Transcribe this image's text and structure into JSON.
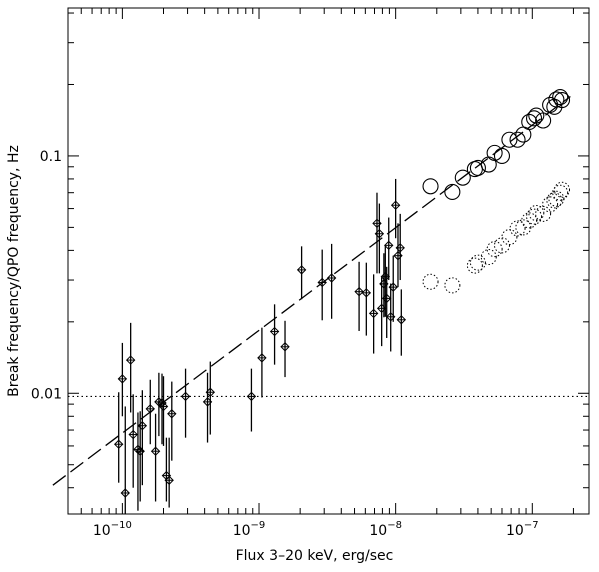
{
  "chart_data": {
    "type": "scatter",
    "title": "",
    "xlabel": "Flux 3–20 keV, erg/sec",
    "ylabel": "Break frequency/QPO frequency, Hz",
    "xscale": "log",
    "yscale": "log",
    "xlim": [
      4e-11,
      2.6e-07
    ],
    "ylim": [
      0.0031,
      0.42
    ],
    "grid": false,
    "legend": "none",
    "x_ticks": [
      {
        "base": "10",
        "exp": "−10",
        "value": 1e-10
      },
      {
        "base": "10",
        "exp": "−9",
        "value": 1e-09
      },
      {
        "base": "10",
        "exp": "−8",
        "value": 1e-08
      },
      {
        "base": "10",
        "exp": "−7",
        "value": 1e-07
      }
    ],
    "y_ticks": [
      {
        "label": "0.01",
        "value": 0.01
      },
      {
        "label": "0.1",
        "value": 0.1
      }
    ],
    "reference_line": {
      "style": "dotted",
      "y": 0.0097
    },
    "fit_line": {
      "style": "dashed",
      "x": [
        3.1e-11,
        1.9e-07
      ],
      "y": [
        0.0041,
        0.178
      ]
    },
    "series": [
      {
        "marker": "diamond-errorbar",
        "x": [
          9.4e-11,
          1e-10,
          1.05e-10,
          1.15e-10,
          1.2e-10,
          1.3e-10,
          1.35e-10,
          1.4e-10,
          1.6e-10,
          1.75e-10,
          1.85e-10,
          1.95e-10,
          2e-10,
          2.1e-10,
          2.2e-10,
          2.3e-10,
          2.9e-10,
          4.2e-10,
          4.4e-10,
          8.8e-10,
          1.05e-09,
          1.3e-09,
          1.55e-09,
          2.05e-09,
          2.9e-09,
          3.4e-09,
          5.4e-09,
          6.1e-09,
          6.9e-09,
          7.3e-09,
          7.6e-09,
          7.9e-09,
          8.2e-09,
          8.4e-09,
          8.6e-09,
          8.9e-09,
          9.2e-09,
          9.6e-09,
          1e-08,
          1.04e-08,
          1.08e-08,
          1.1e-08
        ],
        "y": [
          0.0061,
          0.0115,
          0.0038,
          0.0138,
          0.0067,
          0.0058,
          0.0057,
          0.0073,
          0.0086,
          0.0057,
          0.0092,
          0.0091,
          0.0088,
          0.0045,
          0.0043,
          0.0082,
          0.0097,
          0.0092,
          0.0101,
          0.0097,
          0.0141,
          0.0182,
          0.0157,
          0.0331,
          0.0293,
          0.0306,
          0.0268,
          0.0265,
          0.0217,
          0.052,
          0.047,
          0.0228,
          0.0289,
          0.031,
          0.0251,
          0.042,
          0.021,
          0.028,
          0.062,
          0.038,
          0.041,
          0.0204
        ],
        "y_err_low": [
          0.0019,
          0.0035,
          0.0012,
          0.0055,
          0.0027,
          0.0026,
          0.0022,
          0.0032,
          0.0025,
          0.0022,
          0.0026,
          0.003,
          0.0028,
          0.001,
          0.001,
          0.003,
          0.0032,
          0.003,
          0.0034,
          0.0028,
          0.0045,
          0.005,
          0.004,
          0.0082,
          0.009,
          0.01,
          0.0085,
          0.009,
          0.007,
          0.02,
          0.015,
          0.007,
          0.008,
          0.01,
          0.008,
          0.012,
          0.006,
          0.008,
          0.017,
          0.01,
          0.011,
          0.006
        ],
        "y_err_high": [
          0.004,
          0.0048,
          0.005,
          0.006,
          0.0032,
          0.0025,
          0.0027,
          0.003,
          0.0028,
          0.0025,
          0.003,
          0.003,
          0.003,
          0.002,
          0.0022,
          0.003,
          0.003,
          0.003,
          0.0035,
          0.003,
          0.0048,
          0.0055,
          0.0045,
          0.0085,
          0.011,
          0.012,
          0.009,
          0.009,
          0.01,
          0.018,
          0.016,
          0.008,
          0.01,
          0.011,
          0.009,
          0.013,
          0.008,
          0.01,
          0.018,
          0.014,
          0.016,
          0.007
        ]
      },
      {
        "marker": "open-circle-solid",
        "x": [
          1.8e-08,
          2.6e-08,
          3.1e-08,
          3.8e-08,
          4e-08,
          4.8e-08,
          5.3e-08,
          6e-08,
          6.8e-08,
          7.8e-08,
          8.6e-08,
          9.5e-08,
          1.03e-07,
          1.07e-07,
          1.2e-07,
          1.35e-07,
          1.45e-07,
          1.5e-07,
          1.6e-07,
          1.65e-07
        ],
        "y": [
          0.0745,
          0.0705,
          0.081,
          0.088,
          0.089,
          0.092,
          0.103,
          0.1,
          0.117,
          0.117,
          0.123,
          0.139,
          0.144,
          0.148,
          0.141,
          0.164,
          0.161,
          0.173,
          0.177,
          0.172
        ]
      },
      {
        "marker": "open-circle-dotted",
        "x": [
          1.8e-08,
          2.6e-08,
          3.8e-08,
          4e-08,
          4.8e-08,
          5.3e-08,
          6e-08,
          6.8e-08,
          7.8e-08,
          8.6e-08,
          9.5e-08,
          1.03e-07,
          1.07e-07,
          1.2e-07,
          1.35e-07,
          1.45e-07,
          1.5e-07,
          1.6e-07,
          1.65e-07
        ],
        "y": [
          0.0295,
          0.0285,
          0.0345,
          0.0355,
          0.0375,
          0.0405,
          0.042,
          0.0455,
          0.0495,
          0.05,
          0.0535,
          0.0555,
          0.0575,
          0.057,
          0.0625,
          0.065,
          0.066,
          0.07,
          0.072
        ]
      }
    ]
  }
}
